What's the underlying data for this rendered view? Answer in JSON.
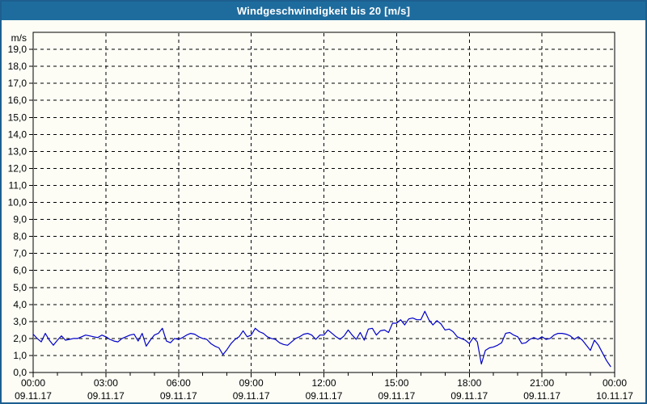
{
  "window": {
    "title": "Windgeschwindigkeit bis 20 [m/s]"
  },
  "colors": {
    "titlebar_bg": "#1e6c9e",
    "window_border": "#1d5f90",
    "chart_bg": "#fdfdf6",
    "line": "#0000c8",
    "grid": "#000000",
    "text": "#000000",
    "title_text": "#ffffff"
  },
  "chart_data": {
    "type": "line",
    "title": "Windgeschwindigkeit bis 20 [m/s]",
    "ylabel_unit": "m/s",
    "ylim": [
      0,
      20
    ],
    "y_tick_step": 1.0,
    "y_tick_labels": [
      "0,0",
      "1,0",
      "2,0",
      "3,0",
      "4,0",
      "5,0",
      "6,0",
      "7,0",
      "8,0",
      "9,0",
      "10,0",
      "11,0",
      "12,0",
      "13,0",
      "14,0",
      "15,0",
      "16,0",
      "17,0",
      "18,0",
      "19,0"
    ],
    "x_hours_span": 24,
    "x_minor_tick_every_hours": 1,
    "x_major_ticks": [
      {
        "hour": 0,
        "time": "00:00",
        "date": "09.11.17"
      },
      {
        "hour": 3,
        "time": "03:00",
        "date": "09.11.17"
      },
      {
        "hour": 6,
        "time": "06:00",
        "date": "09.11.17"
      },
      {
        "hour": 9,
        "time": "09:00",
        "date": "09.11.17"
      },
      {
        "hour": 12,
        "time": "12:00",
        "date": "09.11.17"
      },
      {
        "hour": 15,
        "time": "15:00",
        "date": "09.11.17"
      },
      {
        "hour": 18,
        "time": "18:00",
        "date": "09.11.17"
      },
      {
        "hour": 21,
        "time": "21:00",
        "date": "09.11.17"
      },
      {
        "hour": 24,
        "time": "00:00",
        "date": "10.11.17"
      }
    ],
    "grid": "dashed",
    "legend": "none",
    "series": [
      {
        "name": "Windgeschwindigkeit",
        "start_hour": 0,
        "step_minutes": 10,
        "values": [
          2.25,
          2.0,
          1.8,
          2.3,
          1.9,
          1.6,
          1.9,
          2.15,
          1.9,
          1.95,
          2.0,
          2.0,
          2.1,
          2.2,
          2.15,
          2.1,
          2.05,
          2.2,
          2.1,
          1.95,
          1.85,
          1.8,
          2.0,
          2.1,
          2.2,
          2.25,
          1.85,
          2.3,
          1.55,
          1.9,
          2.2,
          2.3,
          2.6,
          1.85,
          1.75,
          2.0,
          1.95,
          2.05,
          2.2,
          2.3,
          2.25,
          2.1,
          2.0,
          1.95,
          1.7,
          1.55,
          1.45,
          1.05,
          1.35,
          1.7,
          1.95,
          2.1,
          2.45,
          2.1,
          2.2,
          2.6,
          2.4,
          2.3,
          2.1,
          2.0,
          1.95,
          1.75,
          1.65,
          1.6,
          1.8,
          2.0,
          2.1,
          2.25,
          2.3,
          2.2,
          1.95,
          2.2,
          2.2,
          2.5,
          2.3,
          2.1,
          1.95,
          2.15,
          2.5,
          2.2,
          1.95,
          2.35,
          1.9,
          2.55,
          2.6,
          2.2,
          2.45,
          2.5,
          2.35,
          2.9,
          2.9,
          3.1,
          2.8,
          3.15,
          3.2,
          3.1,
          3.1,
          3.6,
          3.1,
          2.8,
          3.05,
          2.85,
          2.5,
          2.55,
          2.4,
          2.1,
          2.0,
          1.9,
          1.7,
          2.05,
          1.8,
          0.5,
          1.3,
          1.45,
          1.5,
          1.6,
          1.75,
          2.3,
          2.35,
          2.2,
          2.1,
          1.7,
          1.75,
          1.95,
          2.05,
          1.95,
          2.1,
          1.95,
          2.0,
          2.2,
          2.3,
          2.3,
          2.25,
          2.15,
          1.95,
          2.1,
          1.9,
          1.6,
          1.3,
          1.9,
          1.6,
          1.15,
          0.7,
          0.35
        ]
      }
    ]
  }
}
